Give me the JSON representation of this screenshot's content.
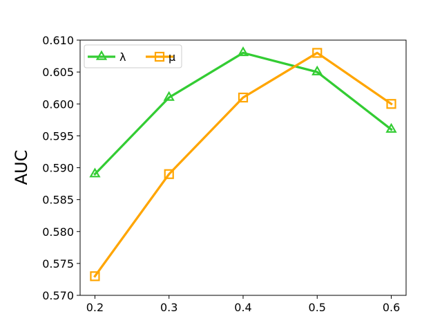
{
  "chart_data": {
    "type": "line",
    "x": [
      0.2,
      0.3,
      0.4,
      0.5,
      0.6
    ],
    "x_tick_labels": [
      "0.2",
      "0.3",
      "0.4",
      "0.5",
      "0.6"
    ],
    "y_tick_values": [
      0.57,
      0.575,
      0.58,
      0.585,
      0.59,
      0.595,
      0.6,
      0.605,
      0.61
    ],
    "y_tick_labels": [
      "0.570",
      "0.575",
      "0.580",
      "0.585",
      "0.590",
      "0.595",
      "0.600",
      "0.605",
      "0.610"
    ],
    "xlim": [
      0.18,
      0.62
    ],
    "ylim": [
      0.57,
      0.61
    ],
    "xlabel": "",
    "ylabel": "AUC",
    "title": "",
    "grid": false,
    "legend_position": "top-left",
    "series": [
      {
        "name": "λ",
        "values": [
          0.589,
          0.601,
          0.608,
          0.605,
          0.596
        ],
        "color": "#33cc33",
        "marker": "triangle"
      },
      {
        "name": "μ",
        "values": [
          0.573,
          0.589,
          0.601,
          0.608,
          0.6
        ],
        "color": "#ffa500",
        "marker": "square"
      }
    ]
  }
}
